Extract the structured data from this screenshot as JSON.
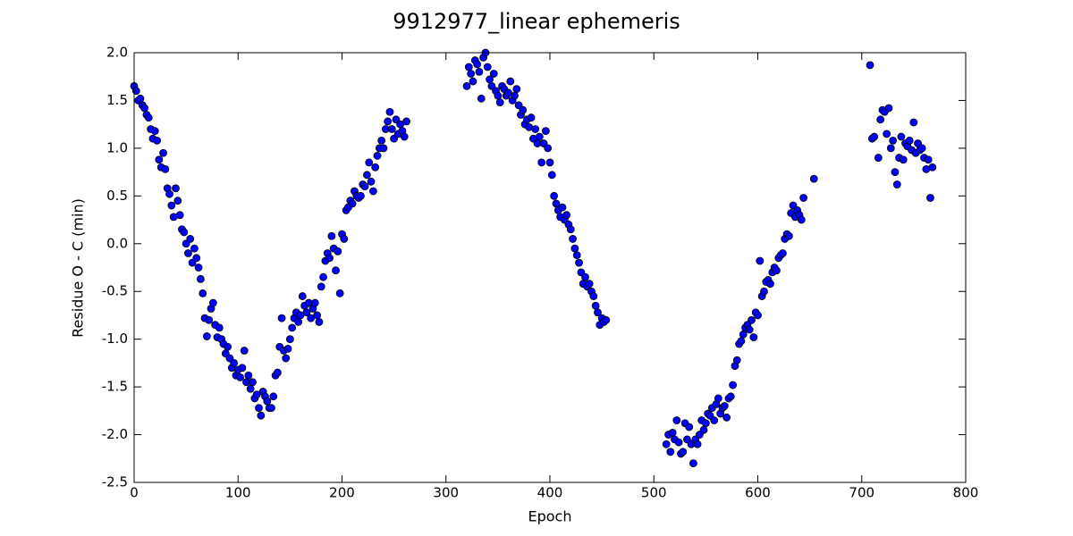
{
  "chart_data": {
    "type": "scatter",
    "title": "9912977_linear ephemeris",
    "x_label": "Epoch",
    "y_label": "Residue O - C (min)",
    "color": "#0000ff",
    "edge_color": "#000000",
    "xlim": [
      0,
      800
    ],
    "xticks": [
      0,
      100,
      200,
      300,
      400,
      500,
      600,
      700,
      800
    ],
    "ylim": [
      -2.5,
      2.0
    ],
    "yticks": [
      -2.5,
      {
        "value": -2,
        "label": "-2.0"
      },
      -1.5,
      {
        "value": -1,
        "label": "-1.0"
      },
      -0.5,
      {
        "value": 0,
        "label": "0.0"
      },
      0.5,
      {
        "value": 1,
        "label": "1.0"
      },
      1.5,
      {
        "value": 2,
        "label": "2.0"
      }
    ],
    "grid": false,
    "x": [
      0,
      2,
      4,
      6,
      8,
      10,
      12,
      14,
      16,
      18,
      20,
      22,
      24,
      26,
      28,
      30,
      32,
      34,
      36,
      38,
      40,
      42,
      44,
      46,
      48,
      50,
      52,
      54,
      56,
      58,
      60,
      62,
      64,
      66,
      68,
      70,
      72,
      74,
      76,
      78,
      80,
      82,
      84,
      86,
      88,
      90,
      92,
      94,
      96,
      98,
      100,
      102,
      104,
      106,
      108,
      110,
      112,
      114,
      116,
      118,
      120,
      122,
      124,
      126,
      128,
      130,
      132,
      134,
      136,
      138,
      140,
      142,
      144,
      146,
      148,
      150,
      152,
      154,
      156,
      158,
      160,
      162,
      164,
      166,
      168,
      170,
      172,
      174,
      176,
      178,
      180,
      182,
      184,
      186,
      188,
      190,
      192,
      194,
      196,
      198,
      200,
      202,
      204,
      206,
      208,
      210,
      212,
      214,
      216,
      218,
      220,
      222,
      224,
      226,
      228,
      230,
      232,
      234,
      236,
      238,
      240,
      242,
      244,
      246,
      248,
      250,
      252,
      254,
      256,
      258,
      260,
      262,
      320,
      322,
      324,
      326,
      328,
      330,
      332,
      334,
      336,
      338,
      340,
      342,
      344,
      346,
      348,
      350,
      352,
      354,
      356,
      358,
      360,
      362,
      364,
      366,
      368,
      370,
      372,
      374,
      376,
      378,
      380,
      382,
      384,
      386,
      388,
      390,
      392,
      394,
      396,
      398,
      400,
      402,
      404,
      406,
      408,
      410,
      412,
      414,
      416,
      418,
      420,
      422,
      424,
      426,
      428,
      430,
      432,
      434,
      436,
      438,
      440,
      442,
      444,
      446,
      448,
      450,
      452,
      454,
      512,
      514,
      516,
      518,
      520,
      522,
      524,
      526,
      528,
      530,
      532,
      534,
      536,
      538,
      540,
      542,
      544,
      546,
      548,
      550,
      552,
      554,
      556,
      558,
      560,
      562,
      564,
      566,
      568,
      570,
      572,
      574,
      576,
      578,
      580,
      582,
      584,
      586,
      588,
      590,
      592,
      594,
      596,
      598,
      600,
      602,
      604,
      606,
      608,
      610,
      612,
      614,
      616,
      618,
      620,
      622,
      624,
      626,
      628,
      630,
      632,
      634,
      636,
      638,
      640,
      642,
      644,
      654,
      708,
      710,
      712,
      716,
      718,
      720,
      722,
      724,
      726,
      728,
      730,
      732,
      734,
      736,
      738,
      740,
      742,
      744,
      746,
      748,
      750,
      752,
      754,
      756,
      758,
      760,
      762,
      764,
      766,
      768
    ],
    "y": [
      1.65,
      1.6,
      1.5,
      1.52,
      1.45,
      1.42,
      1.35,
      1.32,
      1.2,
      1.1,
      1.18,
      1.08,
      0.88,
      0.8,
      0.95,
      0.78,
      0.58,
      0.52,
      0.4,
      0.28,
      0.58,
      0.45,
      0.3,
      0.15,
      0.12,
      0.0,
      -0.1,
      0.05,
      -0.2,
      -0.05,
      -0.15,
      -0.25,
      -0.37,
      -0.52,
      -0.78,
      -0.97,
      -0.8,
      -0.68,
      -0.62,
      -0.85,
      -0.98,
      -0.88,
      -1.0,
      -1.05,
      -1.15,
      -1.08,
      -1.2,
      -1.3,
      -1.25,
      -1.38,
      -1.32,
      -1.4,
      -1.3,
      -1.12,
      -1.45,
      -1.38,
      -1.52,
      -1.45,
      -1.62,
      -1.58,
      -1.72,
      -1.8,
      -1.55,
      -1.6,
      -1.65,
      -1.72,
      -1.72,
      -1.6,
      -1.38,
      -1.35,
      -1.08,
      -0.78,
      -1.12,
      -1.2,
      -1.1,
      -1.0,
      -0.88,
      -0.78,
      -0.72,
      -0.82,
      -0.75,
      -0.55,
      -0.65,
      -0.72,
      -0.62,
      -0.78,
      -0.68,
      -0.62,
      -0.75,
      -0.82,
      -0.45,
      -0.35,
      -0.18,
      -0.1,
      -0.15,
      0.08,
      -0.05,
      -0.28,
      -0.08,
      -0.52,
      0.1,
      0.05,
      0.35,
      0.38,
      0.45,
      0.42,
      0.55,
      0.5,
      0.48,
      0.5,
      0.62,
      0.6,
      0.72,
      0.85,
      0.65,
      0.55,
      0.8,
      0.92,
      1.0,
      1.08,
      1.0,
      1.2,
      1.28,
      1.38,
      1.2,
      1.1,
      1.3,
      1.15,
      1.25,
      1.18,
      1.12,
      1.28,
      1.65,
      1.85,
      1.78,
      1.7,
      1.92,
      1.88,
      1.8,
      1.52,
      1.95,
      2.0,
      1.85,
      1.72,
      1.65,
      1.78,
      1.6,
      1.55,
      1.48,
      1.65,
      1.62,
      1.55,
      1.58,
      1.7,
      1.5,
      1.55,
      1.62,
      1.45,
      1.35,
      1.4,
      1.25,
      1.3,
      1.22,
      1.32,
      1.1,
      1.2,
      1.05,
      1.12,
      0.85,
      1.05,
      1.18,
      1.0,
      0.85,
      0.72,
      0.5,
      0.42,
      0.35,
      0.28,
      0.38,
      0.25,
      0.3,
      0.2,
      0.15,
      0.05,
      -0.05,
      -0.12,
      -0.2,
      -0.3,
      -0.42,
      -0.35,
      -0.45,
      -0.42,
      -0.5,
      -0.55,
      -0.65,
      -0.72,
      -0.85,
      -0.78,
      -0.82,
      -0.8,
      -2.1,
      -2.0,
      -2.18,
      -1.98,
      -2.05,
      -1.85,
      -2.08,
      -2.2,
      -2.18,
      -1.88,
      -2.05,
      -1.92,
      -2.1,
      -2.3,
      -2.05,
      -2.1,
      -2.0,
      -1.85,
      -1.95,
      -1.88,
      -1.78,
      -1.8,
      -1.72,
      -1.85,
      -1.68,
      -1.62,
      -1.78,
      -1.72,
      -1.7,
      -1.82,
      -1.62,
      -1.6,
      -1.48,
      -1.28,
      -1.22,
      -1.05,
      -1.02,
      -0.95,
      -0.88,
      -0.85,
      -0.9,
      -0.8,
      -0.98,
      -0.72,
      -0.75,
      -0.18,
      -0.55,
      -0.5,
      -0.4,
      -0.38,
      -0.42,
      -0.3,
      -0.25,
      -0.28,
      -0.15,
      -0.12,
      -0.1,
      0.05,
      0.1,
      0.08,
      0.32,
      0.4,
      0.28,
      0.35,
      0.3,
      0.25,
      0.48,
      0.68,
      1.87,
      1.1,
      1.12,
      0.9,
      1.3,
      1.4,
      1.38,
      1.15,
      1.42,
      1.0,
      1.08,
      0.75,
      0.62,
      0.9,
      1.12,
      0.88,
      1.05,
      1.02,
      1.08,
      0.98,
      1.27,
      0.95,
      1.05,
      0.98,
      1.0,
      0.9,
      0.78,
      0.88,
      0.48,
      0.8
    ]
  }
}
